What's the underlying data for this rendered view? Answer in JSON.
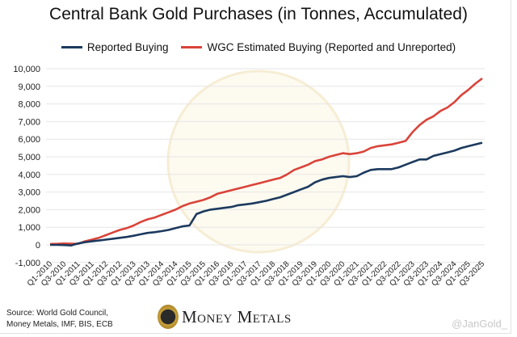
{
  "chart_data": {
    "type": "line",
    "title": "Central Bank Gold Purchases (in Tonnes, Accumulated)",
    "xlabel": "",
    "ylabel": "",
    "ylim": [
      -1000,
      10000
    ],
    "yticks": [
      -1000,
      0,
      1000,
      2000,
      3000,
      4000,
      5000,
      6000,
      7000,
      8000,
      9000,
      10000
    ],
    "ytick_labels": [
      "-1,000",
      "0",
      "1,000",
      "2,000",
      "3,000",
      "4,000",
      "5,000",
      "6,000",
      "7,000",
      "8,000",
      "9,000",
      "10,000"
    ],
    "grid": "horizontal",
    "legend": "top",
    "xtick_labels": [
      "Q1-2010",
      "Q3-2010",
      "Q1-2011",
      "Q3-2011",
      "Q1-2012",
      "Q3-2012",
      "Q1-2013",
      "Q3-2013",
      "Q1-2014",
      "Q3-2014",
      "Q1-2015",
      "Q3-2015",
      "Q1-2016",
      "Q3-2016",
      "Q1-2017",
      "Q3-2017",
      "Q1-2018",
      "Q3-2018",
      "Q1-2019",
      "Q3-2019",
      "Q1-2020",
      "Q3-2020",
      "Q1-2021",
      "Q3-2021",
      "Q1-2022",
      "Q3-2022",
      "Q1-2023",
      "Q3-2023",
      "Q1-2024",
      "Q3-2024",
      "Q1-2025",
      "Q3-2025"
    ],
    "x_start": "Q1-2010",
    "x_end": "Q3-2025",
    "series": [
      {
        "name": "Reported Buying",
        "color": "#1c3a5e",
        "values": [
          0,
          0,
          -10,
          -30,
          80,
          150,
          200,
          250,
          300,
          350,
          400,
          450,
          520,
          600,
          680,
          720,
          780,
          850,
          950,
          1050,
          1100,
          1750,
          1900,
          2000,
          2050,
          2100,
          2150,
          2250,
          2300,
          2350,
          2420,
          2500,
          2600,
          2700,
          2850,
          3000,
          3150,
          3300,
          3550,
          3700,
          3800,
          3850,
          3900,
          3850,
          3900,
          4100,
          4250,
          4300,
          4300,
          4300,
          4400,
          4550,
          4700,
          4850,
          4850,
          5050,
          5150,
          5250,
          5350,
          5500,
          5600,
          5700,
          5800
        ]
      },
      {
        "name": "WGC Estimated Buying (Reported and Unreported)",
        "color": "#d9443a",
        "values": [
          50,
          60,
          80,
          70,
          60,
          200,
          300,
          400,
          550,
          700,
          850,
          950,
          1100,
          1300,
          1450,
          1550,
          1700,
          1850,
          2000,
          2200,
          2350,
          2450,
          2550,
          2700,
          2900,
          3000,
          3100,
          3200,
          3300,
          3400,
          3500,
          3600,
          3700,
          3800,
          4000,
          4250,
          4400,
          4550,
          4750,
          4850,
          5000,
          5100,
          5200,
          5150,
          5200,
          5300,
          5500,
          5600,
          5650,
          5700,
          5800,
          5900,
          6400,
          6800,
          7100,
          7300,
          7600,
          7800,
          8100,
          8500,
          8800,
          9150,
          9450
        ]
      }
    ]
  },
  "footer": {
    "source_line1": "Source: World Gold Council,",
    "source_line2": "Money Metals, IMF, BIS, ECB",
    "logo_text": "Money Metals",
    "handle": "@JanGold_"
  }
}
